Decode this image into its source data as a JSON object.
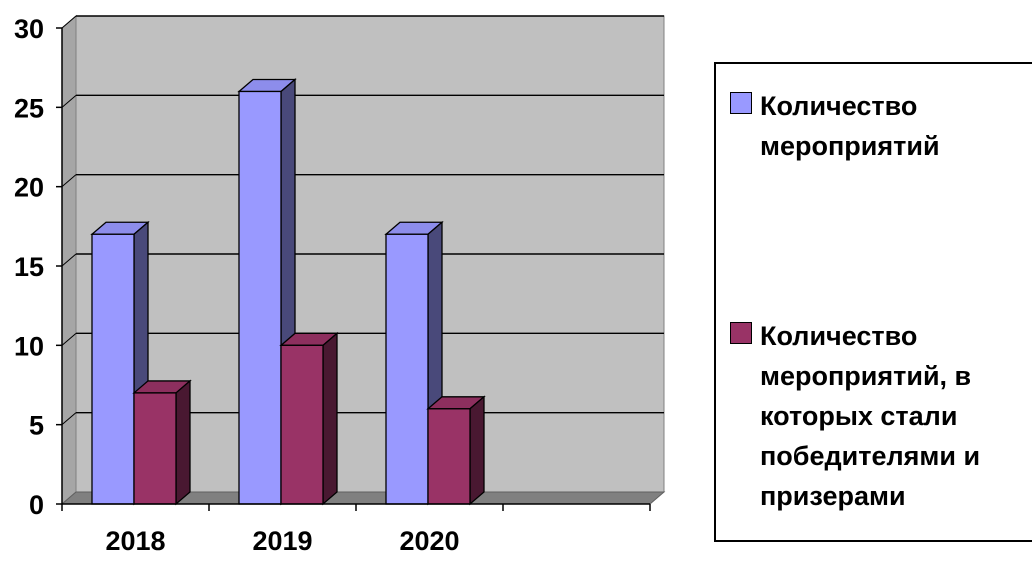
{
  "chart_data": {
    "type": "bar",
    "variant": "3d-clustered-column",
    "categories": [
      "2018",
      "2019",
      "2020",
      ""
    ],
    "series": [
      {
        "name": "Количество мероприятий",
        "values": [
          17,
          26,
          17,
          null
        ],
        "color": "#9999ff"
      },
      {
        "name": "Количество мероприятий, в которых стали победителями и призерами",
        "values": [
          7,
          10,
          6,
          null
        ],
        "color": "#993366"
      }
    ],
    "y_ticks": [
      "0",
      "5",
      "10",
      "15",
      "20",
      "25",
      "30"
    ],
    "ylim": [
      0,
      30
    ],
    "title": "",
    "xlabel": "",
    "ylabel": "",
    "grid": true,
    "legend_position": "right",
    "plot_background": "#c0c0c0"
  }
}
